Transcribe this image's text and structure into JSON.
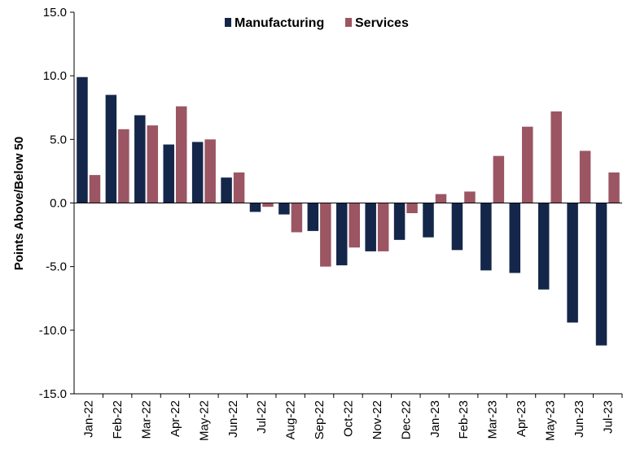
{
  "chart_data": {
    "type": "bar",
    "title": "",
    "xlabel": "",
    "ylabel": "Points Above/Below 50",
    "ylim": [
      -15,
      15
    ],
    "yticks": [
      "15.0",
      "10.0",
      "5.0",
      "0.0",
      "-5.0",
      "-10.0",
      "-15.0"
    ],
    "grid": false,
    "legend_position": "top-center",
    "categories": [
      "Jan-22",
      "Feb-22",
      "Mar-22",
      "Apr-22",
      "May-22",
      "Jun-22",
      "Jul-22",
      "Aug-22",
      "Sep-22",
      "Oct-22",
      "Nov-22",
      "Dec-22",
      "Jan-23",
      "Feb-23",
      "Mar-23",
      "Apr-23",
      "May-23",
      "Jun-23",
      "Jul-23"
    ],
    "series": [
      {
        "name": "Manufacturing",
        "color": "#14274a",
        "values": [
          9.9,
          8.5,
          6.9,
          4.6,
          4.8,
          2.0,
          -0.7,
          -0.9,
          -2.2,
          -4.9,
          -3.8,
          -2.9,
          -2.7,
          -3.7,
          -5.3,
          -5.5,
          -6.8,
          -9.4,
          -11.2
        ]
      },
      {
        "name": "Services",
        "color": "#9b5563",
        "values": [
          2.2,
          5.8,
          6.1,
          7.6,
          5.0,
          2.4,
          -0.3,
          -2.3,
          -5.0,
          -3.5,
          -3.8,
          -0.8,
          0.7,
          0.9,
          3.7,
          6.0,
          7.2,
          4.1,
          2.4
        ]
      }
    ]
  }
}
